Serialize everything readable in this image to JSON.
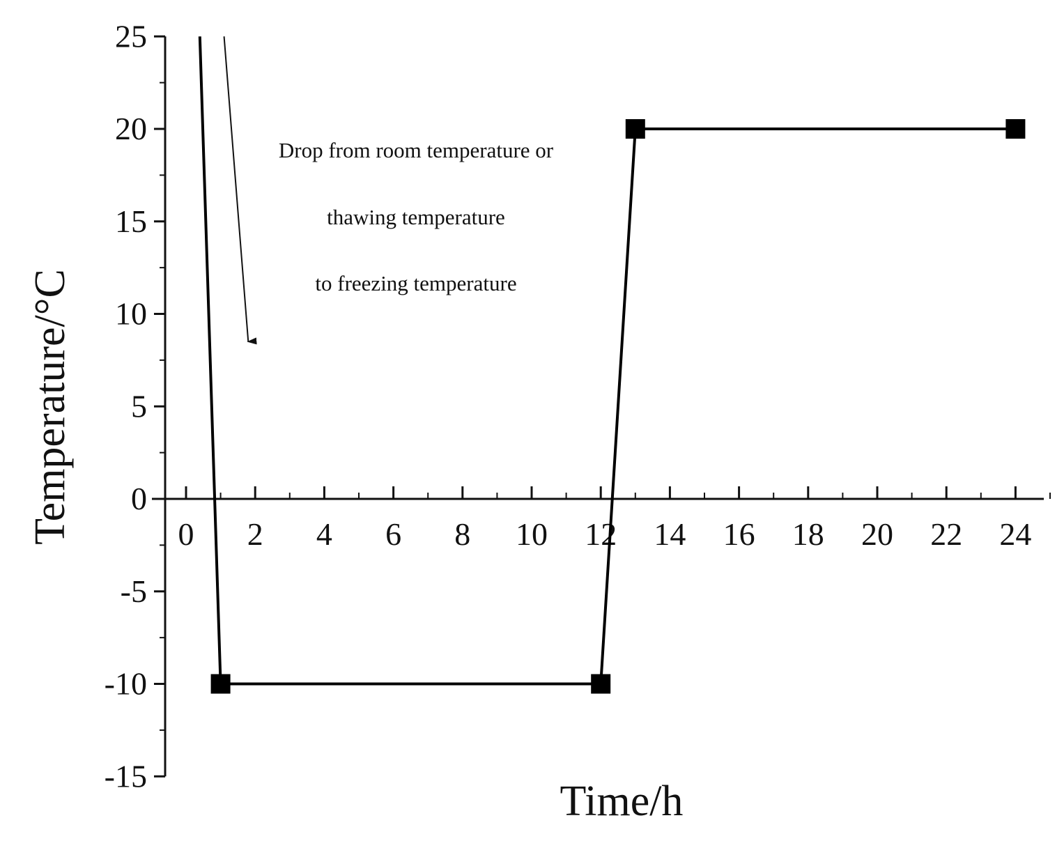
{
  "chart_data": {
    "type": "line",
    "title": "",
    "xlabel": "Time/h",
    "ylabel": "Temperature/°C",
    "xlim": [
      -0.5,
      25
    ],
    "ylim": [
      -15,
      25
    ],
    "x_ticks": [
      0,
      2,
      4,
      6,
      8,
      10,
      12,
      14,
      16,
      18,
      20,
      22,
      24
    ],
    "y_ticks": [
      -15,
      -10,
      -5,
      0,
      5,
      10,
      15,
      20,
      25
    ],
    "grid": false,
    "legend": "none",
    "series": [
      {
        "color": "#000000",
        "marker": "square",
        "line_points": [
          {
            "x": 0.4,
            "y": 25
          },
          {
            "x": 1,
            "y": -10
          },
          {
            "x": 12,
            "y": -10
          },
          {
            "x": 13,
            "y": 20
          },
          {
            "x": 24,
            "y": 20
          }
        ],
        "markers": [
          {
            "x": 1,
            "y": -10
          },
          {
            "x": 12,
            "y": -10
          },
          {
            "x": 13,
            "y": 20
          },
          {
            "x": 24,
            "y": 20
          }
        ]
      }
    ],
    "annotations": [
      {
        "lines": [
          "Drop from room temperature or",
          "thawing temperature",
          "to freezing temperature"
        ],
        "arrow_from": {
          "x": 1.1,
          "y": 25
        },
        "arrow_to": {
          "x": 1.8,
          "y": 8.5
        }
      }
    ]
  }
}
